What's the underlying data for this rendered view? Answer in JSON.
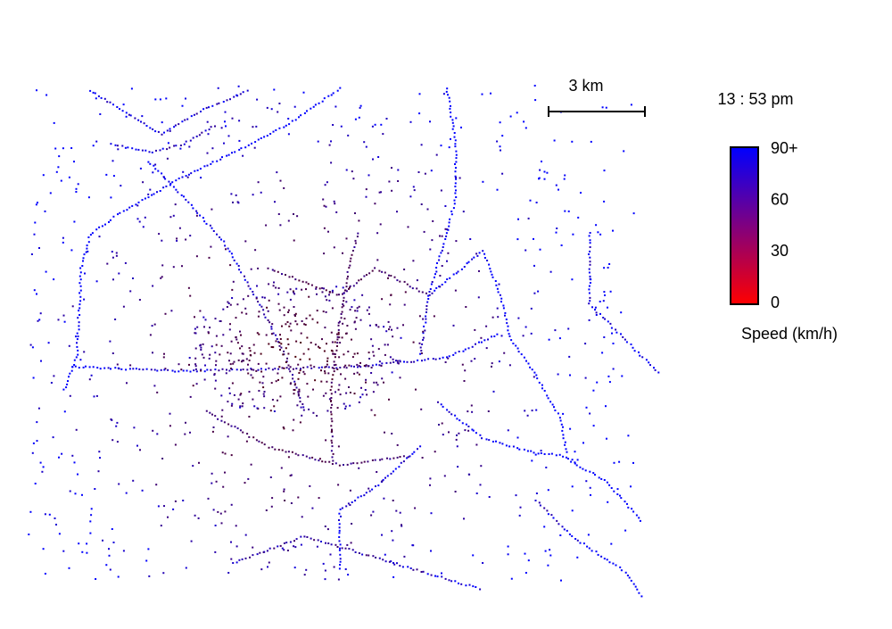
{
  "map": {
    "scale_bar": {
      "label": "3 km"
    },
    "time": "13 : 53 pm",
    "legend": {
      "title": "Speed (km/h)",
      "range": [
        0,
        90
      ],
      "low_color": "#ff0000",
      "high_color": "#0000ff",
      "ticks": [
        {
          "value": 90,
          "label": "90+"
        },
        60,
        30,
        0
      ]
    }
  }
}
